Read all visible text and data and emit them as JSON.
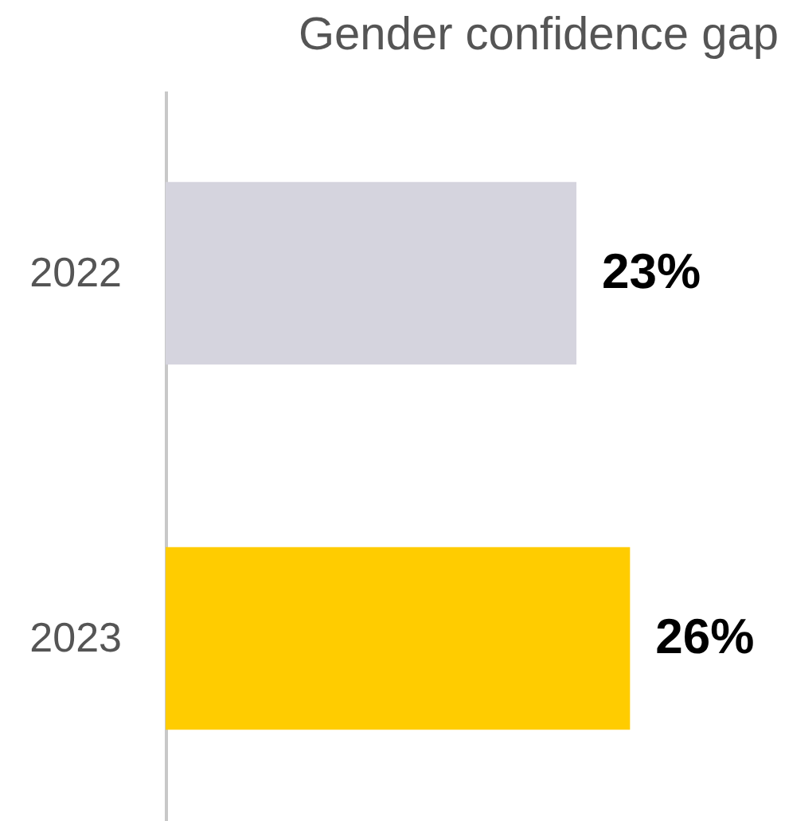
{
  "chart_data": {
    "type": "bar",
    "orientation": "horizontal",
    "title": "Gender confidence gap",
    "categories": [
      "2022",
      "2023"
    ],
    "values": [
      23,
      26
    ],
    "colors": [
      "#d5d4de",
      "#ffcc00"
    ],
    "value_labels": [
      "23%",
      "26%"
    ],
    "tick_labels": "y"
  }
}
